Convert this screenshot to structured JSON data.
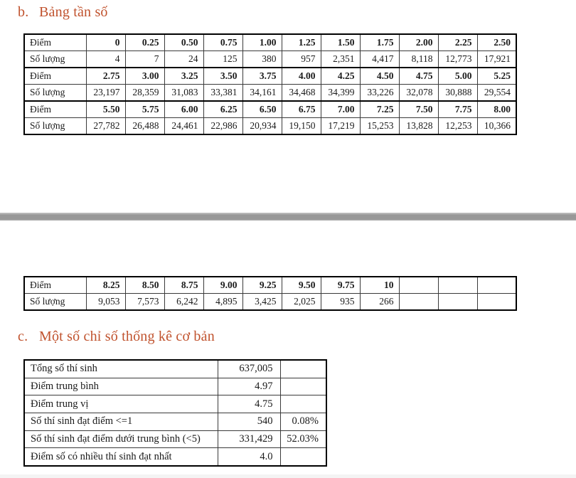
{
  "page": {
    "accent_color": "#c0522d",
    "heading_b": {
      "marker": "b.",
      "text": "Bảng tần số"
    },
    "heading_c": {
      "marker": "c.",
      "text": "Một số chỉ số thống kê cơ bản"
    }
  },
  "freq_table": {
    "row_labels": {
      "diem": "Điểm",
      "soluong": "Số lượng"
    },
    "page1_pairs": [
      {
        "diem": [
          "0",
          "0.25",
          "0.50",
          "0.75",
          "1.00",
          "1.25",
          "1.50",
          "1.75",
          "2.00",
          "2.25",
          "2.50"
        ],
        "soluong": [
          "4",
          "7",
          "24",
          "125",
          "380",
          "957",
          "2,351",
          "4,417",
          "8,118",
          "12,773",
          "17,921"
        ]
      },
      {
        "diem": [
          "2.75",
          "3.00",
          "3.25",
          "3.50",
          "3.75",
          "4.00",
          "4.25",
          "4.50",
          "4.75",
          "5.00",
          "5.25"
        ],
        "soluong": [
          "23,197",
          "28,359",
          "31,083",
          "33,381",
          "34,161",
          "34,468",
          "34,399",
          "33,226",
          "32,078",
          "30,888",
          "29,554"
        ]
      },
      {
        "diem": [
          "5.50",
          "5.75",
          "6.00",
          "6.25",
          "6.50",
          "6.75",
          "7.00",
          "7.25",
          "7.50",
          "7.75",
          "8.00"
        ],
        "soluong": [
          "27,782",
          "26,488",
          "24,461",
          "22,986",
          "20,934",
          "19,150",
          "17,219",
          "15,253",
          "13,828",
          "12,253",
          "10,366"
        ]
      }
    ],
    "page2_pairs": [
      {
        "diem": [
          "8.25",
          "8.50",
          "8.75",
          "9.00",
          "9.25",
          "9.50",
          "9.75",
          "10",
          "",
          "",
          ""
        ],
        "soluong": [
          "9,053",
          "7,573",
          "6,242",
          "4,895",
          "3,425",
          "2,025",
          "935",
          "266",
          "",
          "",
          ""
        ]
      }
    ]
  },
  "stats_table": {
    "rows": [
      {
        "label": "Tổng số thí sinh",
        "value": "637,005",
        "percent": ""
      },
      {
        "label": "Điểm trung bình",
        "value": "4.97",
        "percent": ""
      },
      {
        "label": "Điểm trung vị",
        "value": "4.75",
        "percent": ""
      },
      {
        "label": "Số thí sinh đạt điểm <=1",
        "value": "540",
        "percent": "0.08%"
      },
      {
        "label": "Số thí sinh đạt điểm dưới trung bình (<5)",
        "value": "331,429",
        "percent": "52.03%"
      },
      {
        "label": "Điểm số có nhiều thí sinh đạt nhất",
        "value": "4.0",
        "percent": ""
      }
    ]
  }
}
